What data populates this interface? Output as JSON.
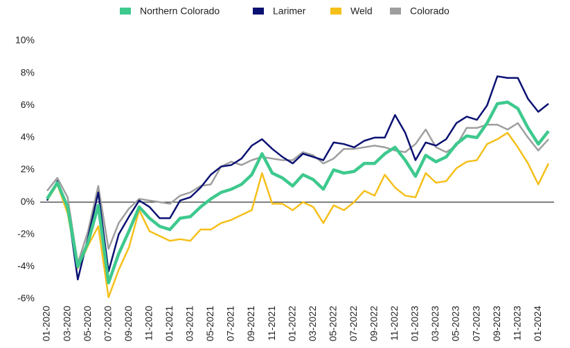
{
  "chart_data": {
    "type": "line",
    "categories": [
      "01-2020",
      null,
      "03-2020",
      null,
      "05-2020",
      null,
      "07-2020",
      null,
      "09-2020",
      null,
      "11-2020",
      null,
      "01-2021",
      null,
      "03-2021",
      null,
      "05-2021",
      null,
      "07-2021",
      null,
      "09-2021",
      null,
      "11-2021",
      null,
      "01-2022",
      null,
      "03-2022",
      null,
      "05-2022",
      null,
      "07-2022",
      null,
      "09-2022",
      null,
      "11-2022",
      null,
      "01-2023",
      null,
      "03-2023",
      null,
      "05-2023",
      null,
      "07-2023",
      null,
      "09-2023",
      null,
      "11-2023",
      null,
      "01-2024",
      null
    ],
    "series": [
      {
        "name": "Northern Colorado",
        "color": "#3ec98e",
        "values": [
          0.2,
          1.2,
          -0.3,
          -4.0,
          -2.5,
          -0.2,
          -5.0,
          -3.2,
          -1.8,
          -0.3,
          -1.0,
          -1.5,
          -1.7,
          -1.0,
          -0.9,
          -0.3,
          0.2,
          0.6,
          0.8,
          1.1,
          1.7,
          3.0,
          1.8,
          1.5,
          1.0,
          1.7,
          1.4,
          0.8,
          2.0,
          1.8,
          1.9,
          2.4,
          2.4,
          3.0,
          3.4,
          2.6,
          1.6,
          2.9,
          2.5,
          2.8,
          3.6,
          4.1,
          4.0,
          4.9,
          6.1,
          6.2,
          5.8,
          4.6,
          3.6,
          4.4
        ]
      },
      {
        "name": "Larimer",
        "color": "#0a1172",
        "values": [
          0.1,
          1.3,
          -0.3,
          -4.8,
          -2.2,
          0.6,
          -4.3,
          -2.0,
          -0.9,
          0.1,
          -0.3,
          -1.0,
          -1.0,
          0.1,
          0.3,
          0.9,
          1.7,
          2.2,
          2.3,
          2.7,
          3.5,
          3.9,
          3.3,
          2.8,
          2.4,
          3.0,
          2.8,
          2.6,
          3.7,
          3.6,
          3.4,
          3.8,
          4.0,
          4.0,
          5.4,
          4.3,
          2.6,
          3.7,
          3.5,
          3.9,
          4.9,
          5.3,
          5.1,
          6.0,
          7.8,
          7.7,
          7.7,
          6.4,
          5.6,
          6.1
        ]
      },
      {
        "name": "Weld",
        "color": "#f5bf19",
        "values": [
          0.1,
          1.1,
          -0.7,
          -4.1,
          -2.7,
          -1.5,
          -5.9,
          -4.2,
          -2.8,
          -0.5,
          -1.8,
          -2.1,
          -2.4,
          -2.3,
          -2.4,
          -1.7,
          -1.7,
          -1.3,
          -1.1,
          -0.8,
          -0.5,
          1.8,
          -0.1,
          -0.1,
          -0.5,
          0.0,
          -0.3,
          -1.3,
          -0.2,
          -0.5,
          0.0,
          0.7,
          0.4,
          1.7,
          0.9,
          0.4,
          0.3,
          1.8,
          1.2,
          1.3,
          2.1,
          2.5,
          2.6,
          3.6,
          3.9,
          4.3,
          3.4,
          2.4,
          1.1,
          2.4
        ]
      },
      {
        "name": "Colorado",
        "color": "#9e9e9e",
        "values": [
          0.7,
          1.5,
          0.3,
          -3.8,
          -1.8,
          1.0,
          -2.9,
          -1.3,
          -0.4,
          0.2,
          0.1,
          0.0,
          -0.1,
          0.4,
          0.6,
          1.0,
          1.1,
          2.2,
          2.5,
          2.3,
          2.6,
          2.8,
          2.7,
          2.6,
          2.6,
          3.1,
          2.9,
          2.4,
          2.7,
          3.3,
          3.3,
          3.4,
          3.5,
          3.4,
          3.2,
          3.1,
          3.6,
          4.5,
          3.4,
          3.1,
          3.5,
          4.6,
          4.6,
          4.8,
          4.8,
          4.5,
          4.9,
          4.0,
          3.2,
          3.9
        ]
      }
    ],
    "ylim": [
      -6,
      10
    ],
    "yticks": [
      {
        "value": -6,
        "label": "-6%"
      },
      {
        "value": -4,
        "label": "-4%"
      },
      {
        "value": -2,
        "label": "-2%"
      },
      {
        "value": 0,
        "label": "0%"
      },
      {
        "value": 2,
        "label": "2%"
      },
      {
        "value": 4,
        "label": "4%"
      },
      {
        "value": 6,
        "label": "6%"
      },
      {
        "value": 8,
        "label": "8%"
      },
      {
        "value": 10,
        "label": "10%"
      }
    ],
    "legend": "top"
  }
}
